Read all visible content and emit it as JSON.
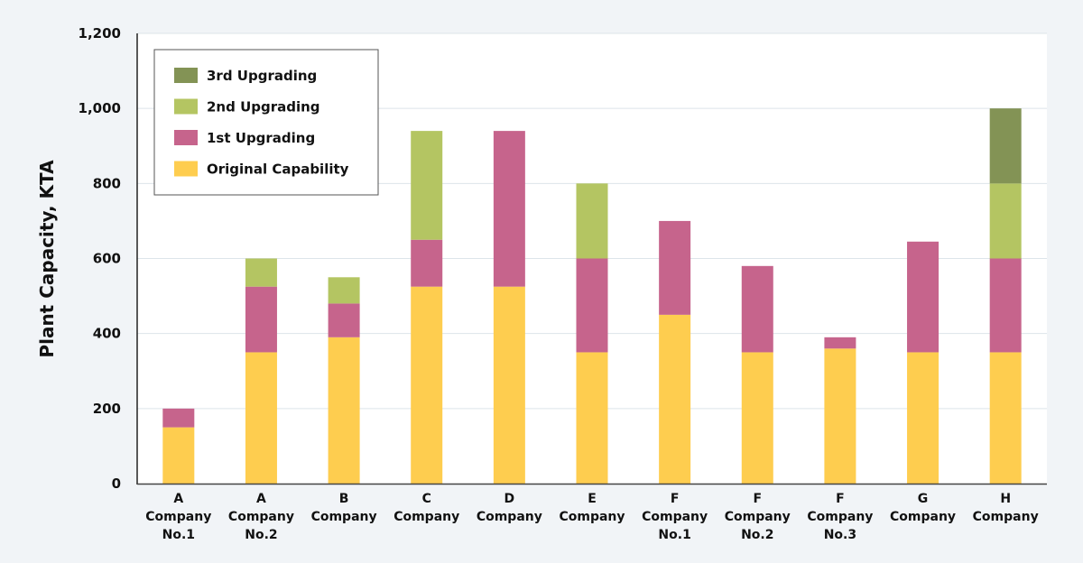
{
  "chart_data": {
    "type": "bar",
    "stacked": true,
    "title": "",
    "xlabel": "",
    "ylabel": "Plant Capacity, KTA",
    "ylim": [
      0,
      1200
    ],
    "yticks": [
      0,
      200,
      400,
      600,
      800,
      1000,
      1200
    ],
    "ytick_labels": [
      "0",
      "200",
      "400",
      "600",
      "800",
      "1,000",
      "1,200"
    ],
    "grid": "horizontal",
    "legend_position": "top-left",
    "categories": [
      [
        "A",
        "Company",
        "No.1"
      ],
      [
        "A",
        "Company",
        "No.2"
      ],
      [
        "B",
        "Company"
      ],
      [
        "C",
        "Company"
      ],
      [
        "D",
        "Company"
      ],
      [
        "E",
        "Company"
      ],
      [
        "F",
        "Company",
        "No.1"
      ],
      [
        "F",
        "Company",
        "No.2"
      ],
      [
        "F",
        "Company",
        "No.3"
      ],
      [
        "G",
        "Company"
      ],
      [
        "H",
        "Company"
      ]
    ],
    "series": [
      {
        "name": "Original Capability",
        "color": "#fecd4f",
        "values": [
          150,
          350,
          390,
          525,
          525,
          350,
          450,
          350,
          360,
          350,
          350
        ]
      },
      {
        "name": "1st Upgrading",
        "color": "#c6648c",
        "values": [
          50,
          175,
          90,
          125,
          415,
          250,
          250,
          230,
          30,
          295,
          250
        ]
      },
      {
        "name": "2nd Upgrading",
        "color": "#b4c562",
        "values": [
          0,
          75,
          70,
          290,
          0,
          200,
          0,
          0,
          0,
          0,
          200
        ]
      },
      {
        "name": "3rd Upgrading",
        "color": "#839355",
        "values": [
          0,
          0,
          0,
          0,
          0,
          0,
          0,
          0,
          0,
          0,
          200
        ]
      }
    ],
    "legend_order": [
      "3rd Upgrading",
      "2nd Upgrading",
      "1st Upgrading",
      "Original Capability"
    ]
  }
}
